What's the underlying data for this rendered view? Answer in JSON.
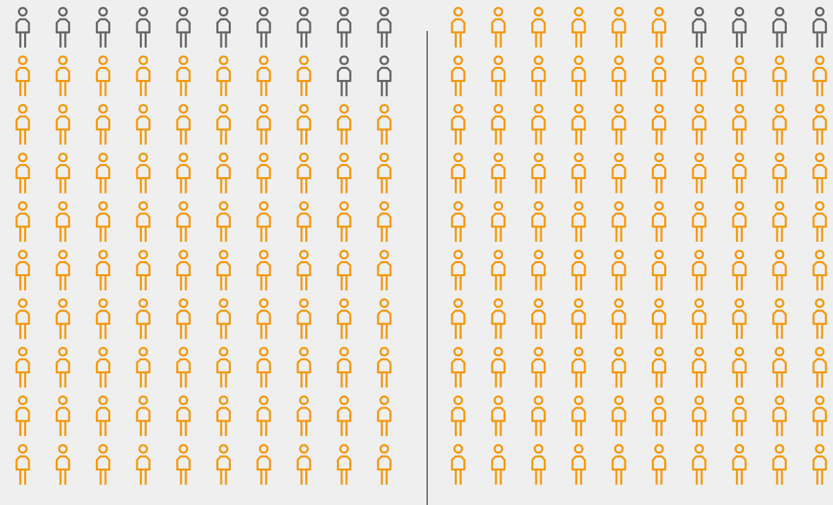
{
  "chart_data": [
    {
      "type": "waffle",
      "values": [
        12,
        88
      ],
      "colors": [
        "#666666",
        "#f39a12"
      ]
    },
    {
      "type": "waffle",
      "values": [
        4,
        96
      ],
      "colors": [
        "#666666",
        "#f39a12"
      ]
    }
  ]
}
